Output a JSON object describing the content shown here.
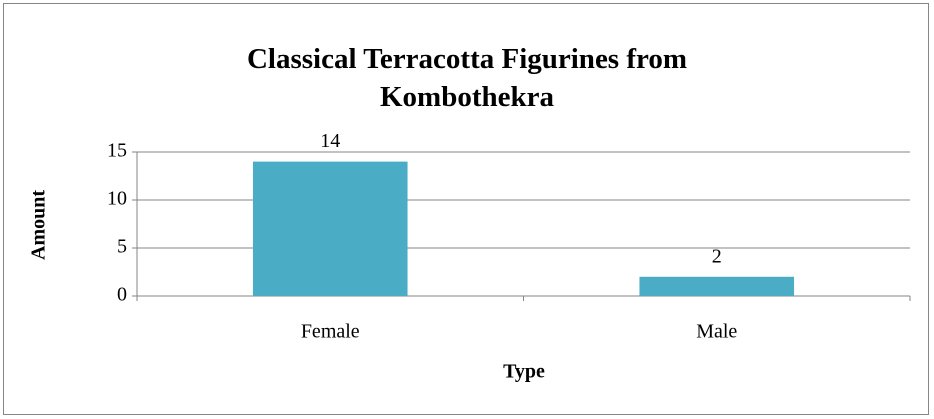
{
  "chart_data": {
    "type": "bar",
    "title": "Classical Terracotta Figurines from Kombothekra",
    "x_label": "Type",
    "y_label": "Amount",
    "categories": [
      "Female",
      "Male"
    ],
    "values": [
      14,
      2
    ],
    "color": "#4bacc6",
    "ylim": [
      0,
      15
    ],
    "yticks": [
      0,
      5,
      10,
      15
    ],
    "grid": true,
    "data_labels": true
  }
}
